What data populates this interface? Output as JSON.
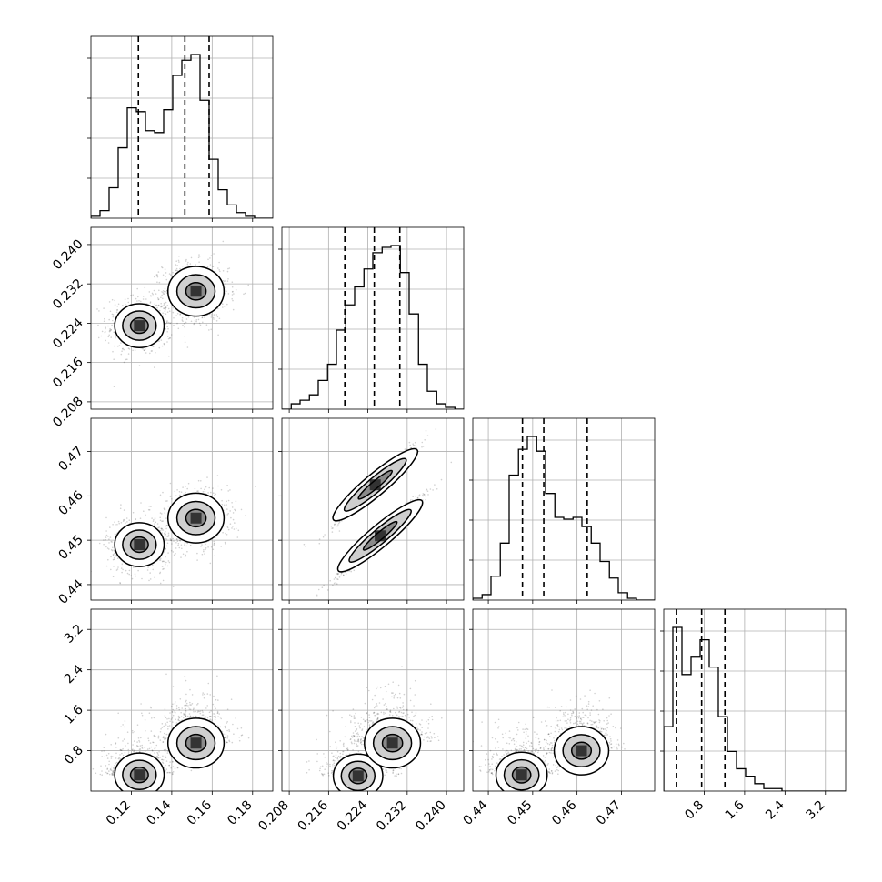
{
  "chart_data": {
    "type": "corner",
    "title": "",
    "grid": true,
    "parameters": [
      {
        "index": 0,
        "range": [
          0.1,
          0.19
        ],
        "ticks": [
          0.12,
          0.14,
          0.16,
          0.18
        ],
        "tick_labels": [
          "0.12",
          "0.14",
          "0.16",
          "0.18"
        ]
      },
      {
        "index": 1,
        "range": [
          0.2065,
          0.2435
        ],
        "ticks": [
          0.208,
          0.216,
          0.224,
          0.232,
          0.24
        ],
        "tick_labels": [
          "0.208",
          "0.216",
          "0.224",
          "0.232",
          "0.240"
        ]
      },
      {
        "index": 2,
        "range": [
          0.4365,
          0.4775
        ],
        "ticks": [
          0.44,
          0.45,
          0.46,
          0.47
        ],
        "tick_labels": [
          "0.44",
          "0.45",
          "0.46",
          "0.47"
        ]
      },
      {
        "index": 3,
        "range": [
          0.0,
          3.6
        ],
        "ticks": [
          0.8,
          1.6,
          2.4,
          3.2
        ],
        "tick_labels": [
          "0.8",
          "1.6",
          "2.4",
          "3.2"
        ]
      }
    ],
    "histograms": [
      {
        "param": 0,
        "bin_edges": [
          0.1,
          0.1045,
          0.109,
          0.1135,
          0.118,
          0.1225,
          0.127,
          0.1315,
          0.136,
          0.1405,
          0.145,
          0.1495,
          0.154,
          0.1585,
          0.163,
          0.1675,
          0.172,
          0.1765,
          0.181,
          0.1855,
          0.19
        ],
        "counts": [
          1,
          4,
          16,
          37,
          58,
          56,
          46,
          45,
          57,
          75,
          83,
          86,
          62,
          31,
          15,
          7,
          3,
          1,
          0,
          0
        ],
        "quantiles": [
          0.1235,
          0.1465,
          0.1585
        ]
      },
      {
        "param": 1,
        "bin_edges": [
          0.2065,
          0.2084,
          0.2102,
          0.2121,
          0.2139,
          0.2158,
          0.2176,
          0.2195,
          0.2213,
          0.2232,
          0.225,
          0.2269,
          0.2287,
          0.2306,
          0.2324,
          0.2343,
          0.2361,
          0.238,
          0.2398,
          0.2417,
          0.2435
        ],
        "counts": [
          0,
          3,
          5,
          8,
          16,
          25,
          44,
          58,
          68,
          78,
          87,
          90,
          91,
          76,
          53,
          25,
          10,
          3,
          1,
          0
        ],
        "quantiles": [
          0.2193,
          0.2253,
          0.2305
        ]
      },
      {
        "param": 2,
        "bin_edges": [
          0.4365,
          0.4386,
          0.4406,
          0.4427,
          0.4447,
          0.4468,
          0.4488,
          0.4509,
          0.4529,
          0.455,
          0.457,
          0.4591,
          0.4611,
          0.4632,
          0.4652,
          0.4673,
          0.4693,
          0.4714,
          0.4734,
          0.4755,
          0.4775
        ],
        "counts": [
          1,
          3,
          13,
          31,
          68,
          82,
          89,
          81,
          58,
          45,
          44,
          45,
          40,
          31,
          21,
          12,
          4,
          1,
          0,
          0
        ],
        "quantiles": [
          0.4477,
          0.4525,
          0.4623
        ]
      },
      {
        "param": 3,
        "bin_edges": [
          0.0,
          0.18,
          0.36,
          0.54,
          0.72,
          0.9,
          1.08,
          1.26,
          1.44,
          1.62,
          1.8,
          1.98,
          2.16,
          2.34,
          2.52,
          2.7,
          2.88,
          3.06,
          3.24,
          3.42,
          3.6
        ],
        "counts": [
          26,
          66,
          47,
          54,
          61,
          50,
          30,
          16,
          9,
          6,
          3,
          1,
          1,
          0,
          0,
          0,
          0,
          0,
          0,
          0
        ],
        "quantiles": [
          0.25,
          0.75,
          1.21
        ]
      }
    ],
    "joint_panels": [
      {
        "x_param": 0,
        "y_param": 1,
        "modes": [
          {
            "x": 0.124,
            "y": 0.2235,
            "weight": 0.4
          },
          {
            "x": 0.152,
            "y": 0.2305,
            "weight": 0.6
          }
        ]
      },
      {
        "x_param": 0,
        "y_param": 2,
        "modes": [
          {
            "x": 0.124,
            "y": 0.449,
            "weight": 0.4
          },
          {
            "x": 0.152,
            "y": 0.455,
            "weight": 0.6
          }
        ]
      },
      {
        "x_param": 1,
        "y_param": 2,
        "modes": [
          {
            "x": 0.2255,
            "y": 0.4625,
            "weight": 0.35
          },
          {
            "x": 0.2265,
            "y": 0.451,
            "weight": 0.65
          }
        ]
      },
      {
        "x_param": 0,
        "y_param": 3,
        "modes": [
          {
            "x": 0.124,
            "y": 0.32,
            "weight": 0.4
          },
          {
            "x": 0.152,
            "y": 0.95,
            "weight": 0.6
          }
        ]
      },
      {
        "x_param": 1,
        "y_param": 3,
        "modes": [
          {
            "x": 0.222,
            "y": 0.3,
            "weight": 0.4
          },
          {
            "x": 0.229,
            "y": 0.95,
            "weight": 0.6
          }
        ]
      },
      {
        "x_param": 2,
        "y_param": 3,
        "modes": [
          {
            "x": 0.4475,
            "y": 0.32,
            "weight": 0.45
          },
          {
            "x": 0.461,
            "y": 0.8,
            "weight": 0.55
          }
        ]
      }
    ]
  }
}
